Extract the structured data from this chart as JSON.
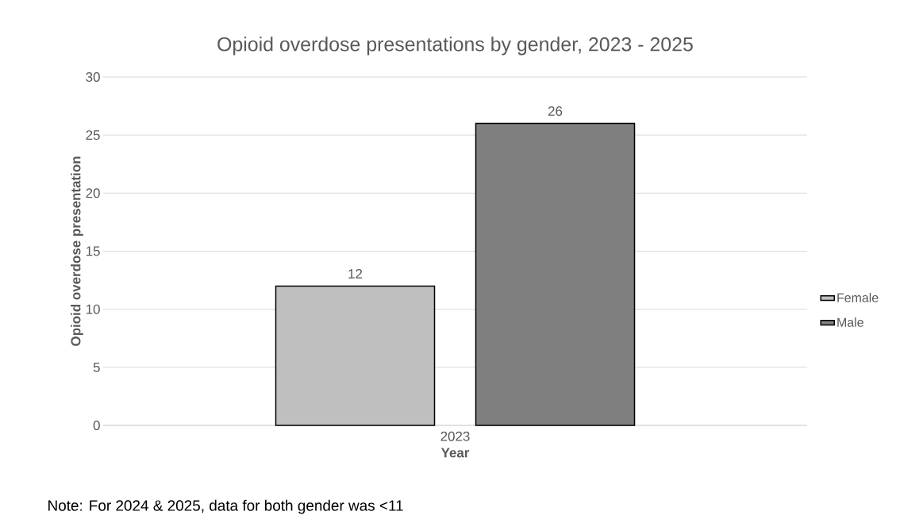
{
  "chart_data": {
    "type": "bar",
    "title": "Opioid overdose presentations by gender, 2023 - 2025",
    "xlabel": "Year",
    "ylabel": "Opioid overdose presentation",
    "categories": [
      "2023"
    ],
    "series": [
      {
        "name": "Female",
        "color": "#bfbfbf",
        "values": [
          12
        ]
      },
      {
        "name": "Male",
        "color": "#7f7f7f",
        "values": [
          26
        ]
      }
    ],
    "ylim": [
      0,
      30
    ],
    "yticks": [
      0,
      5,
      10,
      15,
      20,
      25,
      30
    ],
    "grid": "y",
    "legend": "right",
    "data_labels": true,
    "annotations": [
      "Note: For 2024 & 2025, data for both gender was <11"
    ]
  }
}
